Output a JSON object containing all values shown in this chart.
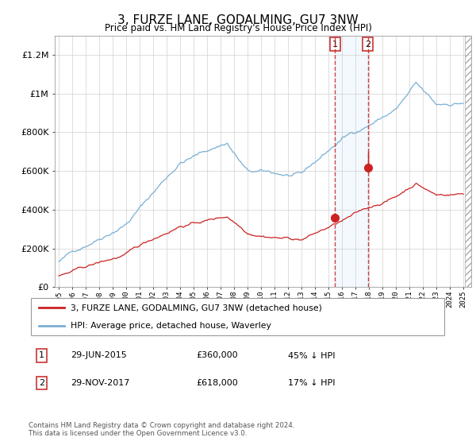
{
  "title": "3, FURZE LANE, GODALMING, GU7 3NW",
  "subtitle": "Price paid vs. HM Land Registry's House Price Index (HPI)",
  "ylim": [
    0,
    1300000
  ],
  "yticks": [
    0,
    200000,
    400000,
    600000,
    800000,
    1000000,
    1200000
  ],
  "hpi_color": "#7bafd4",
  "price_color": "#cc2222",
  "sale1_x": 2015.5,
  "sale1_price": 360000,
  "sale2_x": 2017.92,
  "sale2_price": 618000,
  "shade_color": "#ddeeff",
  "dashed_color": "#cc2222",
  "legend_house": "3, FURZE LANE, GODALMING, GU7 3NW (detached house)",
  "legend_hpi": "HPI: Average price, detached house, Waverley",
  "footnote": "Contains HM Land Registry data © Crown copyright and database right 2024.\nThis data is licensed under the Open Government Licence v3.0.",
  "xstart": 1995,
  "xend": 2025
}
